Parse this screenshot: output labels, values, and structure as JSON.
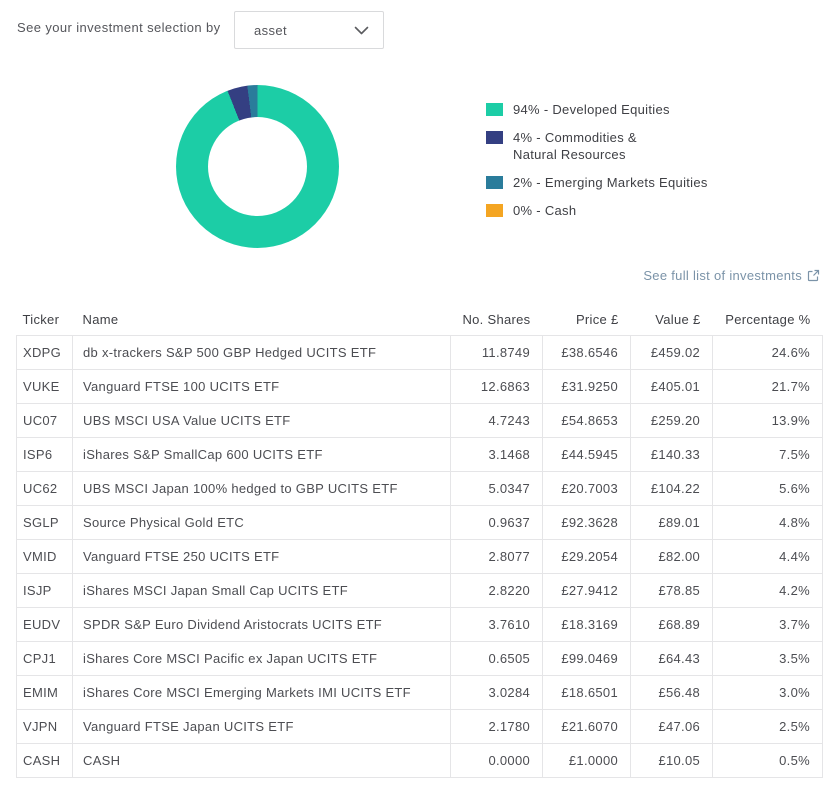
{
  "header": {
    "label": "See your investment selection by",
    "dropdown_value": "asset"
  },
  "chart_data": {
    "type": "pie",
    "donut": true,
    "start_angle": "top",
    "direction": "clockwise",
    "legend_position": "right",
    "slices": [
      {
        "value": 94,
        "label": "Developed Equities",
        "color": "#1CCDA6",
        "legend_label": "94% - Developed Equities"
      },
      {
        "value": 4,
        "label": "Commodities & Natural Resources",
        "color": "#343f82",
        "legend_label": "4% - Commodities &\nNatural Resources"
      },
      {
        "value": 2,
        "label": "Emerging Markets Equities",
        "color": "#2a7c9b",
        "legend_label": "2% - Emerging Markets Equities"
      },
      {
        "value": 0,
        "label": "Cash",
        "color": "#f4a522",
        "legend_label": "0% - Cash"
      }
    ]
  },
  "investments_link": {
    "label": "See full list of investments"
  },
  "table": {
    "headers": [
      "Ticker",
      "Name",
      "No. Shares",
      "Price £",
      "Value £",
      "Percentage %"
    ],
    "rows": [
      {
        "ticker": "XDPG",
        "name": "db x-trackers S&P 500 GBP Hedged UCITS ETF",
        "shares": "11.8749",
        "price": "£38.6546",
        "value": "£459.02",
        "percentage": "24.6%"
      },
      {
        "ticker": "VUKE",
        "name": "Vanguard FTSE 100 UCITS ETF",
        "shares": "12.6863",
        "price": "£31.9250",
        "value": "£405.01",
        "percentage": "21.7%"
      },
      {
        "ticker": "UC07",
        "name": "UBS MSCI USA Value UCITS ETF",
        "shares": "4.7243",
        "price": "£54.8653",
        "value": "£259.20",
        "percentage": "13.9%"
      },
      {
        "ticker": "ISP6",
        "name": "iShares S&P SmallCap 600 UCITS ETF",
        "shares": "3.1468",
        "price": "£44.5945",
        "value": "£140.33",
        "percentage": "7.5%"
      },
      {
        "ticker": "UC62",
        "name": "UBS MSCI Japan 100% hedged to GBP UCITS ETF",
        "shares": "5.0347",
        "price": "£20.7003",
        "value": "£104.22",
        "percentage": "5.6%"
      },
      {
        "ticker": "SGLP",
        "name": "Source Physical Gold ETC",
        "shares": "0.9637",
        "price": "£92.3628",
        "value": "£89.01",
        "percentage": "4.8%"
      },
      {
        "ticker": "VMID",
        "name": "Vanguard FTSE 250 UCITS ETF",
        "shares": "2.8077",
        "price": "£29.2054",
        "value": "£82.00",
        "percentage": "4.4%"
      },
      {
        "ticker": "ISJP",
        "name": "iShares MSCI Japan Small Cap UCITS ETF",
        "shares": "2.8220",
        "price": "£27.9412",
        "value": "£78.85",
        "percentage": "4.2%"
      },
      {
        "ticker": "EUDV",
        "name": "SPDR S&P Euro Dividend Aristocrats UCITS ETF",
        "shares": "3.7610",
        "price": "£18.3169",
        "value": "£68.89",
        "percentage": "3.7%"
      },
      {
        "ticker": "CPJ1",
        "name": "iShares Core MSCI Pacific ex Japan UCITS ETF",
        "shares": "0.6505",
        "price": "£99.0469",
        "value": "£64.43",
        "percentage": "3.5%"
      },
      {
        "ticker": "EMIM",
        "name": "iShares Core MSCI Emerging Markets IMI UCITS ETF",
        "shares": "3.0284",
        "price": "£18.6501",
        "value": "£56.48",
        "percentage": "3.0%"
      },
      {
        "ticker": "VJPN",
        "name": "Vanguard FTSE Japan UCITS ETF",
        "shares": "2.1780",
        "price": "£21.6070",
        "value": "£47.06",
        "percentage": "2.5%"
      },
      {
        "ticker": "CASH",
        "name": "CASH",
        "shares": "0.0000",
        "price": "£1.0000",
        "value": "£10.05",
        "percentage": "0.5%"
      }
    ]
  },
  "colors": {
    "link": "#7b93a8",
    "border": "#e5e5e7",
    "text": "#4c4d52"
  }
}
